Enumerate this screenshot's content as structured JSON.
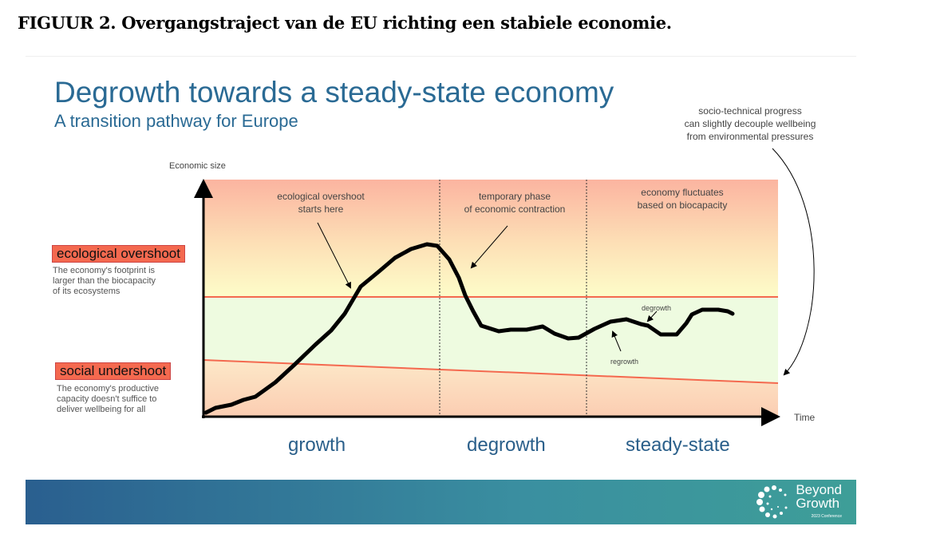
{
  "figure_title": "FIGUUR 2. Overgangstraject van de EU richting een stabiele economie.",
  "slide": {
    "title": "Degrowth towards a steady-state economy",
    "subtitle": "A transition pathway for Europe"
  },
  "axes": {
    "y_label": "Economic size",
    "x_label": "Time"
  },
  "legend": {
    "overshoot": {
      "label": "ecological overshoot",
      "desc": [
        "The economy's footprint is",
        "larger than the biocapacity",
        "of its ecosystems"
      ]
    },
    "undershoot": {
      "label": "social undershoot",
      "desc": [
        "The economy's productive",
        "capacity doesn't suffice to",
        "deliver wellbeing for all"
      ]
    }
  },
  "annotations": {
    "overshoot_start": [
      "ecological overshoot",
      "starts here"
    ],
    "contraction": [
      "temporary phase",
      "of economic contraction"
    ],
    "fluctuates": [
      "economy fluctuates",
      "based on biocapacity"
    ],
    "decouple": [
      "socio-technical progress",
      "can slightly decouple wellbeing",
      "from environmental pressures"
    ],
    "degrowth": "degrowth",
    "regrowth": "regrowth"
  },
  "phases": [
    "growth",
    "degrowth",
    "steady-state"
  ],
  "logo": {
    "line1": "Beyond",
    "line2": "Growth",
    "sub": "2023 Conference"
  },
  "colors": {
    "title": "#2a6a94",
    "boundary_line": "#f4694f",
    "overshoot_zone": "#fbb9a0",
    "safe_zone": "#eefbe0"
  }
}
